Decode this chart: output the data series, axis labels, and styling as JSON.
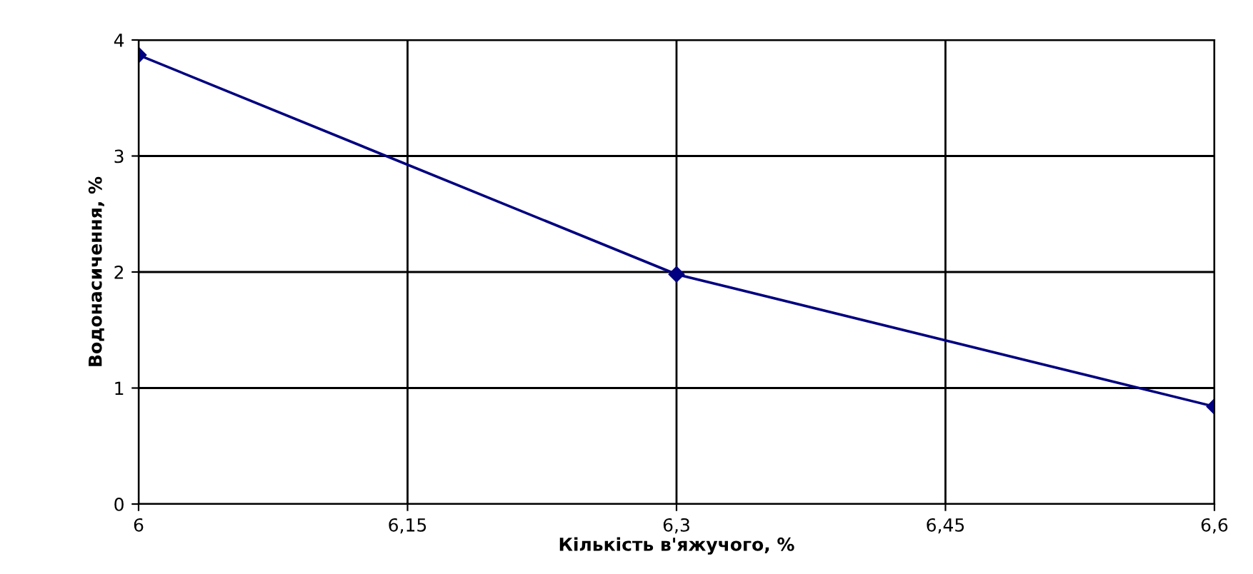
{
  "chart_data": {
    "type": "line",
    "xlabel": "Кількість в'яжучого, %",
    "ylabel": "Водонасичення, %",
    "x": [
      6,
      6.3,
      6.6
    ],
    "series": [
      {
        "color": "#000080",
        "values": [
          3.87,
          1.98,
          0.84
        ]
      }
    ],
    "xlim": [
      6,
      6.6
    ],
    "xticks": [
      6,
      {
        "value": 6.15,
        "label": "6,15"
      },
      {
        "value": 6.3,
        "label": "6,3"
      },
      {
        "value": 6.45,
        "label": "6,45"
      },
      {
        "value": 6.6,
        "label": "6,6"
      }
    ],
    "ylim": [
      0,
      4
    ],
    "yticks": [
      0,
      1,
      2,
      3,
      4
    ],
    "grid": true,
    "legend": false,
    "marker": "diamond",
    "line_style": "solid"
  }
}
